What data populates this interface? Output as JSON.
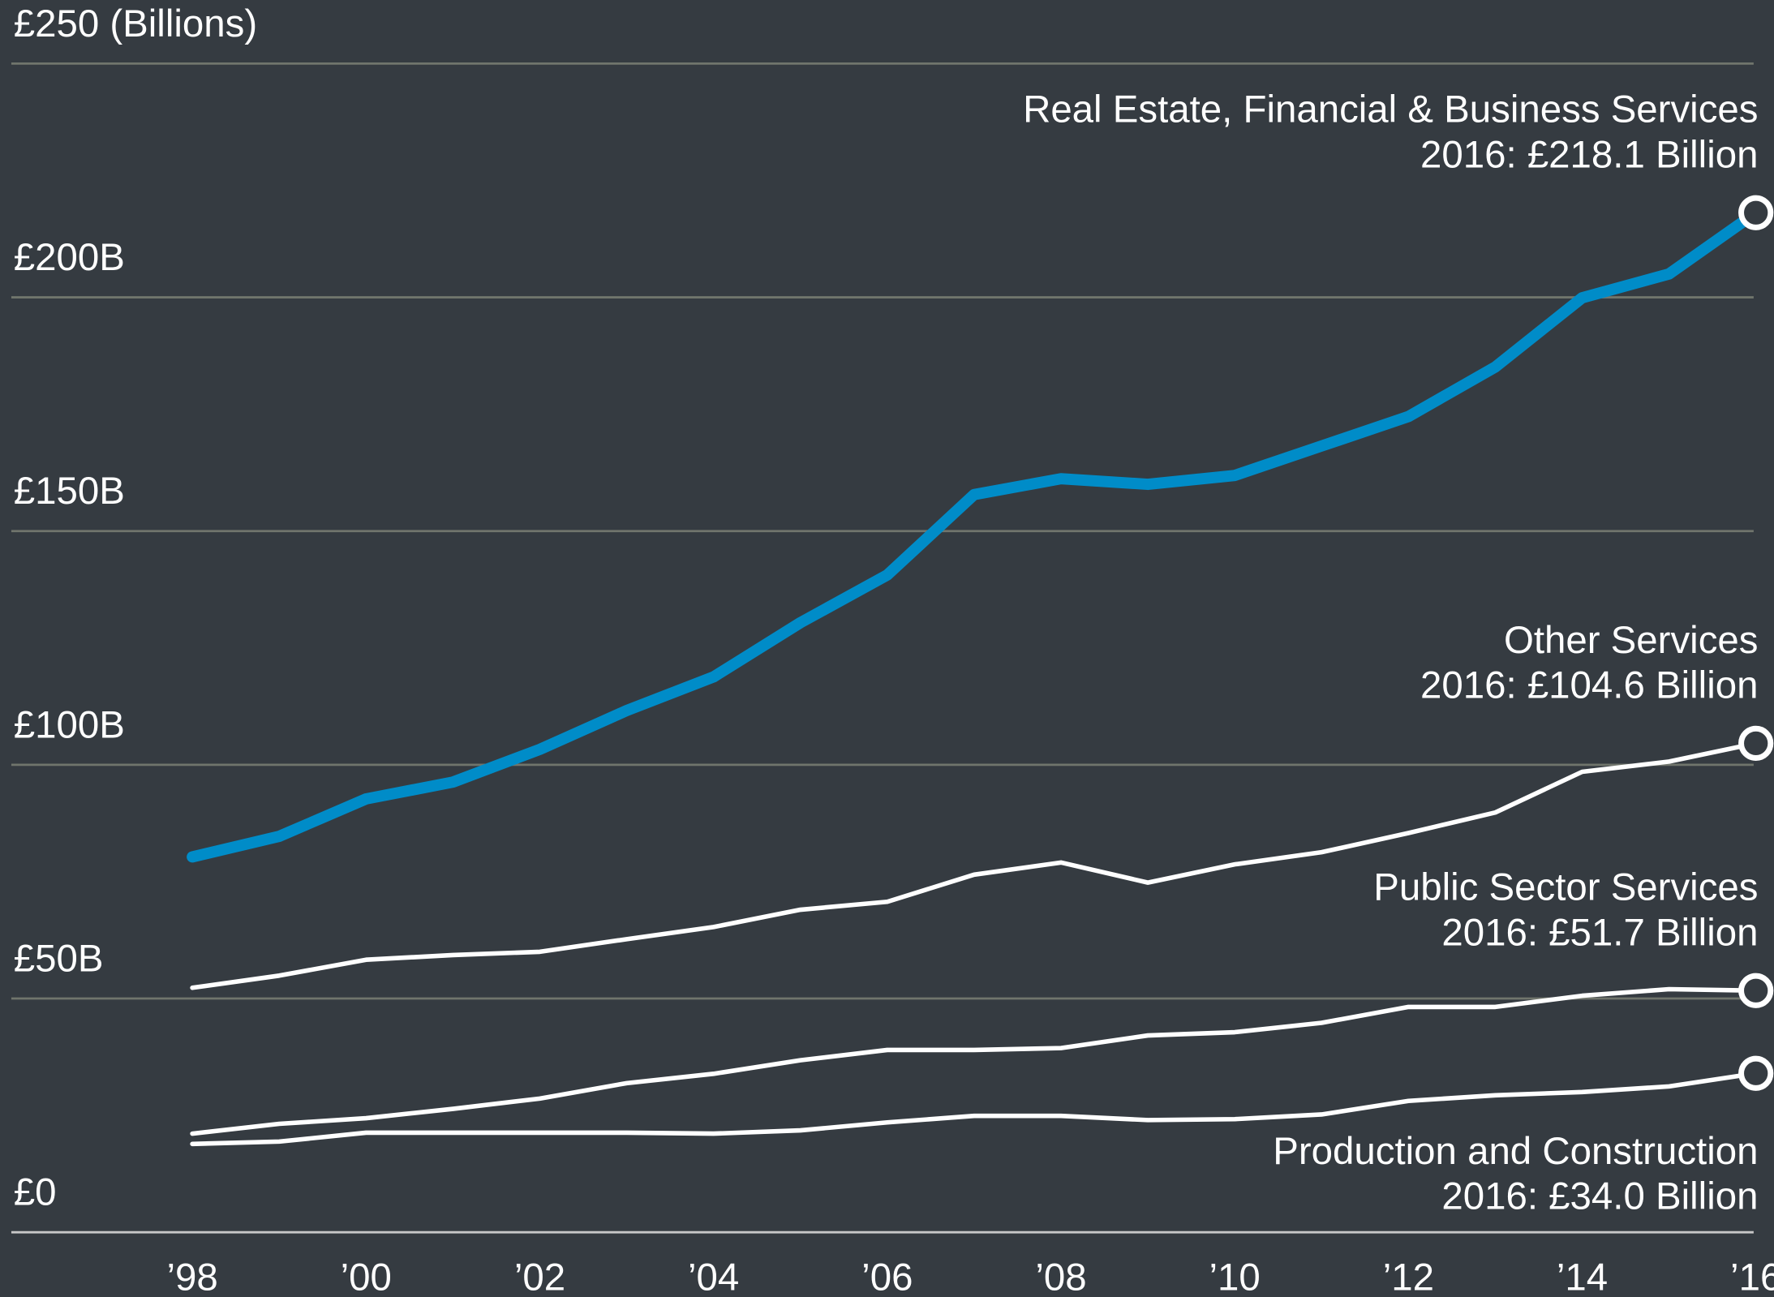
{
  "chart_data": {
    "type": "line",
    "x": [
      1998,
      1999,
      2000,
      2001,
      2002,
      2003,
      2004,
      2005,
      2006,
      2007,
      2008,
      2009,
      2010,
      2011,
      2012,
      2013,
      2014,
      2015,
      2016
    ],
    "xlim": [
      1998,
      2016
    ],
    "xticks": [
      {
        "value": 1998,
        "label": "’98"
      },
      {
        "value": 2000,
        "label": "’00"
      },
      {
        "value": 2002,
        "label": "’02"
      },
      {
        "value": 2004,
        "label": "’04"
      },
      {
        "value": 2006,
        "label": "’06"
      },
      {
        "value": 2008,
        "label": "’08"
      },
      {
        "value": 2010,
        "label": "’10"
      },
      {
        "value": 2012,
        "label": "’12"
      },
      {
        "value": 2014,
        "label": "’14"
      },
      {
        "value": 2016,
        "label": "’16"
      }
    ],
    "ylim": [
      0,
      250
    ],
    "yticks": [
      {
        "value": 0,
        "label": "£0"
      },
      {
        "value": 50,
        "label": "£50B"
      },
      {
        "value": 100,
        "label": "£100B"
      },
      {
        "value": 150,
        "label": "£150B"
      },
      {
        "value": 200,
        "label": "£200B"
      },
      {
        "value": 250,
        "label": "£250 (Billions)"
      }
    ],
    "grid": true,
    "series": [
      {
        "name": "Real Estate, Financial & Business Services",
        "annotation": "2016: £218.1 Billion",
        "color": "#008cc8",
        "values": [
          80.3,
          84.7,
          92.7,
          96.3,
          103.3,
          111.6,
          118.8,
          130.4,
          140.6,
          157.8,
          161.2,
          160.0,
          161.9,
          168.2,
          174.5,
          185.1,
          199.9,
          205.0,
          218.1
        ]
      },
      {
        "name": "Other Services",
        "annotation": "2016: £104.6 Billion",
        "color": "#ffffff",
        "values": [
          52.3,
          54.9,
          58.3,
          59.3,
          60.0,
          62.7,
          65.3,
          69.0,
          70.7,
          76.5,
          79.1,
          74.8,
          78.7,
          81.3,
          85.4,
          89.8,
          98.5,
          100.7,
          104.6
        ]
      },
      {
        "name": "Public Sector Services",
        "annotation": "2016: £51.7 Billion",
        "color": "#ffffff",
        "values": [
          21.1,
          23.2,
          24.4,
          26.4,
          28.6,
          31.9,
          33.9,
          36.8,
          39.0,
          39.0,
          39.4,
          42.1,
          42.8,
          44.8,
          48.2,
          48.2,
          50.6,
          52.0,
          51.7
        ]
      },
      {
        "name": "Production and Construction",
        "annotation": "2016: £34.0 Billion",
        "color": "#ffffff",
        "values": [
          18.9,
          19.4,
          21.3,
          21.3,
          21.3,
          21.3,
          21.1,
          21.8,
          23.5,
          24.9,
          24.9,
          24.0,
          24.2,
          25.2,
          28.1,
          29.3,
          30.0,
          31.2,
          34.0
        ]
      }
    ]
  }
}
